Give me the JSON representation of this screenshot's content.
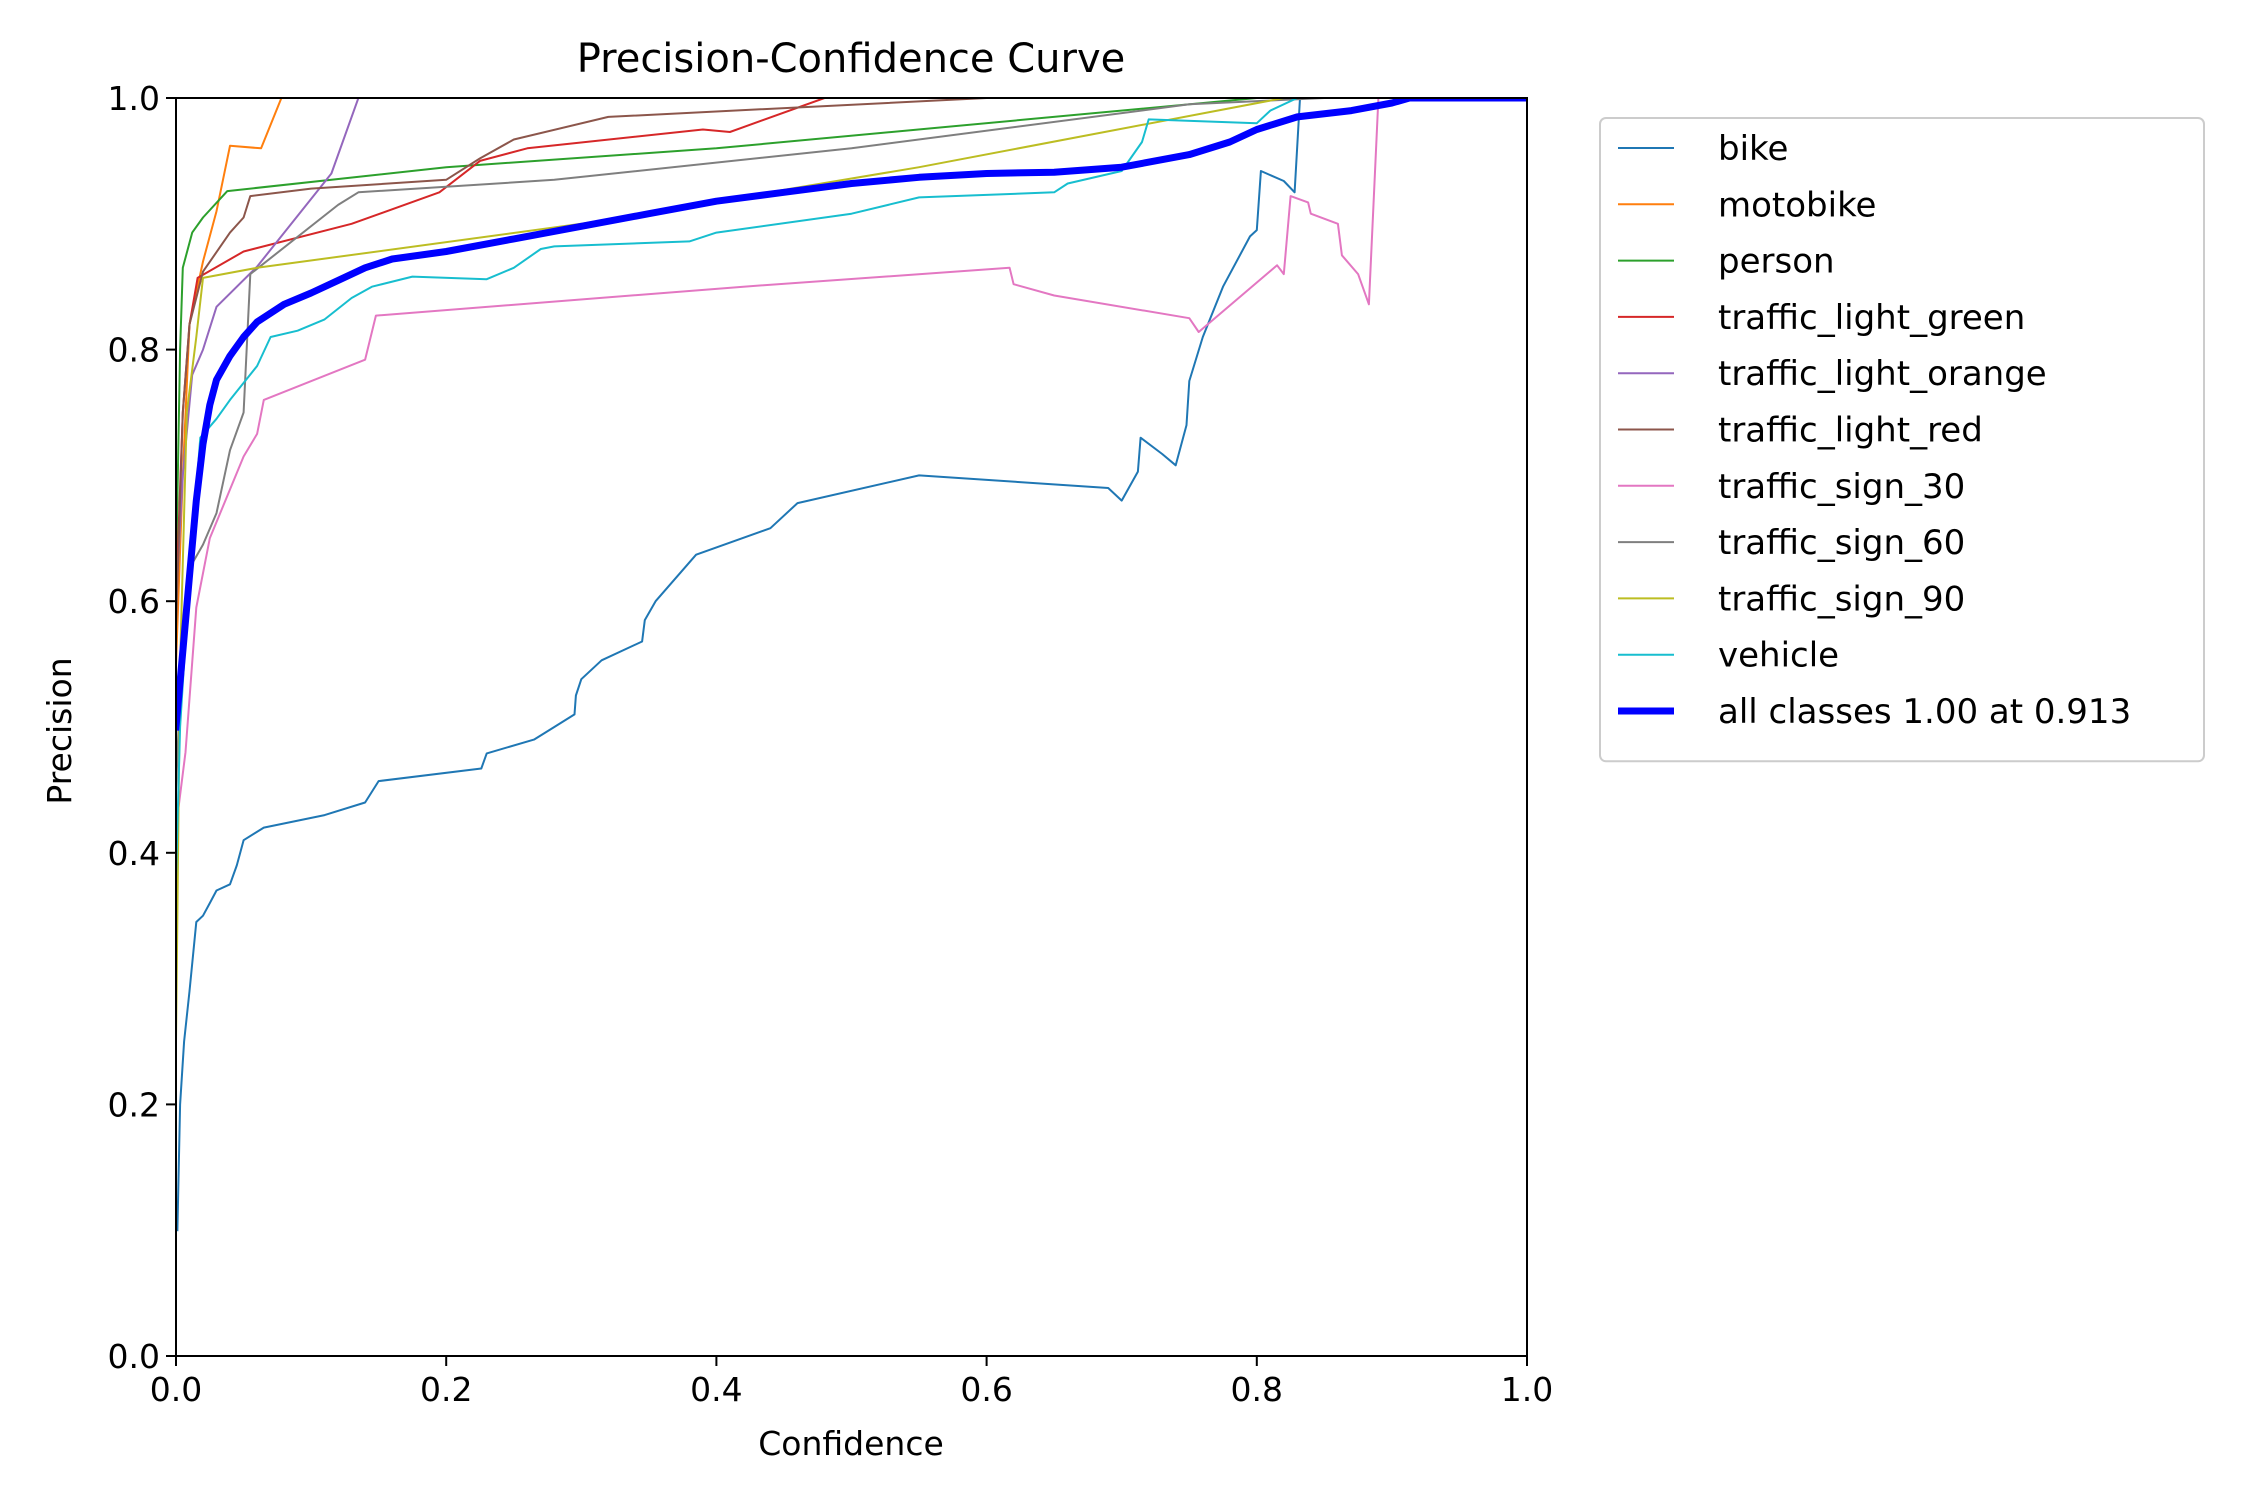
{
  "chart_data": {
    "type": "line",
    "title": "Precision-Confidence Curve",
    "xlabel": "Confidence",
    "ylabel": "Precision",
    "xlim": [
      0,
      1
    ],
    "ylim": [
      0,
      1
    ],
    "xticks": [
      0.0,
      0.2,
      0.4,
      0.6,
      0.8,
      1.0
    ],
    "yticks": [
      0.0,
      0.2,
      0.4,
      0.6,
      0.8,
      1.0
    ],
    "tick_labels_x": [
      "0.0",
      "0.2",
      "0.4",
      "0.6",
      "0.8",
      "1.0"
    ],
    "tick_labels_y": [
      "0.0",
      "0.2",
      "0.4",
      "0.6",
      "0.8",
      "1.0"
    ],
    "grid": false,
    "legend_position": "outside upper right",
    "series": [
      {
        "name": "bike",
        "color": "#1f77b4",
        "width": 2,
        "points": [
          [
            0.001,
            0.1
          ],
          [
            0.003,
            0.2
          ],
          [
            0.006,
            0.25
          ],
          [
            0.01,
            0.29
          ],
          [
            0.015,
            0.345
          ],
          [
            0.02,
            0.35
          ],
          [
            0.025,
            0.36
          ],
          [
            0.03,
            0.37
          ],
          [
            0.04,
            0.375
          ],
          [
            0.045,
            0.39
          ],
          [
            0.05,
            0.41
          ],
          [
            0.065,
            0.42
          ],
          [
            0.11,
            0.43
          ],
          [
            0.14,
            0.44
          ],
          [
            0.15,
            0.457
          ],
          [
            0.226,
            0.467
          ],
          [
            0.23,
            0.479
          ],
          [
            0.265,
            0.49
          ],
          [
            0.28,
            0.5
          ],
          [
            0.295,
            0.51
          ],
          [
            0.296,
            0.525
          ],
          [
            0.3,
            0.538
          ],
          [
            0.315,
            0.553
          ],
          [
            0.345,
            0.568
          ],
          [
            0.347,
            0.585
          ],
          [
            0.355,
            0.6
          ],
          [
            0.385,
            0.637
          ],
          [
            0.44,
            0.658
          ],
          [
            0.46,
            0.678
          ],
          [
            0.55,
            0.7
          ],
          [
            0.69,
            0.69
          ],
          [
            0.7,
            0.68
          ],
          [
            0.712,
            0.703
          ],
          [
            0.714,
            0.73
          ],
          [
            0.73,
            0.717
          ],
          [
            0.74,
            0.708
          ],
          [
            0.748,
            0.74
          ],
          [
            0.75,
            0.775
          ],
          [
            0.76,
            0.81
          ],
          [
            0.775,
            0.85
          ],
          [
            0.795,
            0.89
          ],
          [
            0.8,
            0.895
          ],
          [
            0.803,
            0.942
          ],
          [
            0.82,
            0.934
          ],
          [
            0.828,
            0.925
          ],
          [
            0.832,
            1.0
          ],
          [
            1.0,
            1.0
          ]
        ]
      },
      {
        "name": "motobike",
        "color": "#ff7f0e",
        "width": 2,
        "points": [
          [
            0.0,
            0.55
          ],
          [
            0.005,
            0.7
          ],
          [
            0.01,
            0.82
          ],
          [
            0.02,
            0.87
          ],
          [
            0.03,
            0.91
          ],
          [
            0.04,
            0.962
          ],
          [
            0.063,
            0.96
          ],
          [
            0.078,
            1.0
          ],
          [
            1.0,
            1.0
          ]
        ]
      },
      {
        "name": "person",
        "color": "#2ca02c",
        "width": 2,
        "points": [
          [
            0.0,
            0.62
          ],
          [
            0.003,
            0.8
          ],
          [
            0.005,
            0.865
          ],
          [
            0.012,
            0.893
          ],
          [
            0.02,
            0.905
          ],
          [
            0.038,
            0.926
          ],
          [
            0.2,
            0.945
          ],
          [
            0.4,
            0.96
          ],
          [
            0.8,
            1.0
          ],
          [
            1.0,
            1.0
          ]
        ]
      },
      {
        "name": "traffic_light_green",
        "color": "#d62728",
        "width": 2,
        "points": [
          [
            0.0,
            0.6
          ],
          [
            0.005,
            0.75
          ],
          [
            0.01,
            0.82
          ],
          [
            0.016,
            0.857
          ],
          [
            0.05,
            0.878
          ],
          [
            0.13,
            0.9
          ],
          [
            0.195,
            0.925
          ],
          [
            0.225,
            0.95
          ],
          [
            0.26,
            0.96
          ],
          [
            0.39,
            0.975
          ],
          [
            0.41,
            0.973
          ],
          [
            0.48,
            1.0
          ],
          [
            1.0,
            1.0
          ]
        ]
      },
      {
        "name": "traffic_light_orange",
        "color": "#9467bd",
        "width": 2,
        "points": [
          [
            0.0,
            0.6
          ],
          [
            0.005,
            0.7
          ],
          [
            0.012,
            0.78
          ],
          [
            0.02,
            0.8
          ],
          [
            0.03,
            0.834
          ],
          [
            0.06,
            0.866
          ],
          [
            0.115,
            0.94
          ],
          [
            0.135,
            1.0
          ],
          [
            1.0,
            1.0
          ]
        ]
      },
      {
        "name": "traffic_light_red",
        "color": "#8c564b",
        "width": 2,
        "points": [
          [
            0.0,
            0.58
          ],
          [
            0.005,
            0.75
          ],
          [
            0.01,
            0.82
          ],
          [
            0.02,
            0.862
          ],
          [
            0.04,
            0.893
          ],
          [
            0.05,
            0.905
          ],
          [
            0.055,
            0.922
          ],
          [
            0.1,
            0.928
          ],
          [
            0.2,
            0.935
          ],
          [
            0.225,
            0.952
          ],
          [
            0.25,
            0.967
          ],
          [
            0.32,
            0.985
          ],
          [
            0.6,
            1.0
          ],
          [
            1.0,
            1.0
          ]
        ]
      },
      {
        "name": "traffic_sign_30",
        "color": "#e377c2",
        "width": 2,
        "points": [
          [
            0.0,
            0.42
          ],
          [
            0.007,
            0.48
          ],
          [
            0.015,
            0.595
          ],
          [
            0.025,
            0.65
          ],
          [
            0.05,
            0.715
          ],
          [
            0.06,
            0.733
          ],
          [
            0.065,
            0.76
          ],
          [
            0.14,
            0.792
          ],
          [
            0.148,
            0.827
          ],
          [
            0.42,
            0.85
          ],
          [
            0.617,
            0.865
          ],
          [
            0.62,
            0.852
          ],
          [
            0.65,
            0.843
          ],
          [
            0.75,
            0.825
          ],
          [
            0.757,
            0.814
          ],
          [
            0.815,
            0.867
          ],
          [
            0.82,
            0.86
          ],
          [
            0.825,
            0.922
          ],
          [
            0.838,
            0.917
          ],
          [
            0.84,
            0.908
          ],
          [
            0.86,
            0.9
          ],
          [
            0.863,
            0.875
          ],
          [
            0.875,
            0.86
          ],
          [
            0.883,
            0.836
          ],
          [
            0.89,
            1.0
          ],
          [
            1.0,
            1.0
          ]
        ]
      },
      {
        "name": "traffic_sign_60",
        "color": "#7f7f7f",
        "width": 2,
        "points": [
          [
            0.0,
            0.45
          ],
          [
            0.005,
            0.58
          ],
          [
            0.012,
            0.63
          ],
          [
            0.02,
            0.645
          ],
          [
            0.03,
            0.67
          ],
          [
            0.04,
            0.72
          ],
          [
            0.05,
            0.75
          ],
          [
            0.055,
            0.86
          ],
          [
            0.12,
            0.915
          ],
          [
            0.135,
            0.925
          ],
          [
            0.28,
            0.935
          ],
          [
            0.5,
            0.96
          ],
          [
            0.75,
            0.995
          ],
          [
            0.85,
            1.0
          ],
          [
            1.0,
            1.0
          ]
        ]
      },
      {
        "name": "traffic_sign_90",
        "color": "#bcbd22",
        "width": 2,
        "points": [
          [
            0.0,
            0.25
          ],
          [
            0.003,
            0.55
          ],
          [
            0.008,
            0.75
          ],
          [
            0.015,
            0.81
          ],
          [
            0.02,
            0.857
          ],
          [
            0.06,
            0.865
          ],
          [
            0.3,
            0.9
          ],
          [
            0.55,
            0.945
          ],
          [
            0.82,
            1.0
          ],
          [
            1.0,
            1.0
          ]
        ]
      },
      {
        "name": "vehicle",
        "color": "#17becf",
        "width": 2,
        "points": [
          [
            0.0,
            0.38
          ],
          [
            0.003,
            0.5
          ],
          [
            0.01,
            0.62
          ],
          [
            0.018,
            0.73
          ],
          [
            0.03,
            0.745
          ],
          [
            0.04,
            0.76
          ],
          [
            0.06,
            0.787
          ],
          [
            0.07,
            0.81
          ],
          [
            0.09,
            0.815
          ],
          [
            0.11,
            0.824
          ],
          [
            0.13,
            0.841
          ],
          [
            0.145,
            0.85
          ],
          [
            0.175,
            0.858
          ],
          [
            0.23,
            0.856
          ],
          [
            0.25,
            0.865
          ],
          [
            0.27,
            0.88
          ],
          [
            0.28,
            0.882
          ],
          [
            0.38,
            0.886
          ],
          [
            0.4,
            0.893
          ],
          [
            0.5,
            0.908
          ],
          [
            0.55,
            0.921
          ],
          [
            0.65,
            0.925
          ],
          [
            0.66,
            0.932
          ],
          [
            0.7,
            0.942
          ],
          [
            0.715,
            0.965
          ],
          [
            0.72,
            0.983
          ],
          [
            0.8,
            0.98
          ],
          [
            0.81,
            0.99
          ],
          [
            0.83,
            1.0
          ],
          [
            1.0,
            1.0
          ]
        ]
      },
      {
        "name": "all classes 1.00 at 0.913",
        "color": "#0000ff",
        "width": 7,
        "points": [
          [
            0.0,
            0.5
          ],
          [
            0.005,
            0.56
          ],
          [
            0.01,
            0.62
          ],
          [
            0.015,
            0.68
          ],
          [
            0.02,
            0.725
          ],
          [
            0.025,
            0.756
          ],
          [
            0.03,
            0.776
          ],
          [
            0.04,
            0.795
          ],
          [
            0.05,
            0.81
          ],
          [
            0.06,
            0.822
          ],
          [
            0.08,
            0.836
          ],
          [
            0.1,
            0.845
          ],
          [
            0.12,
            0.855
          ],
          [
            0.14,
            0.865
          ],
          [
            0.16,
            0.872
          ],
          [
            0.2,
            0.878
          ],
          [
            0.25,
            0.888
          ],
          [
            0.3,
            0.898
          ],
          [
            0.35,
            0.908
          ],
          [
            0.4,
            0.918
          ],
          [
            0.45,
            0.925
          ],
          [
            0.5,
            0.932
          ],
          [
            0.55,
            0.937
          ],
          [
            0.6,
            0.94
          ],
          [
            0.65,
            0.941
          ],
          [
            0.7,
            0.945
          ],
          [
            0.75,
            0.955
          ],
          [
            0.78,
            0.965
          ],
          [
            0.8,
            0.975
          ],
          [
            0.83,
            0.985
          ],
          [
            0.87,
            0.99
          ],
          [
            0.9,
            0.996
          ],
          [
            0.913,
            1.0
          ],
          [
            1.0,
            1.0
          ]
        ]
      }
    ]
  }
}
